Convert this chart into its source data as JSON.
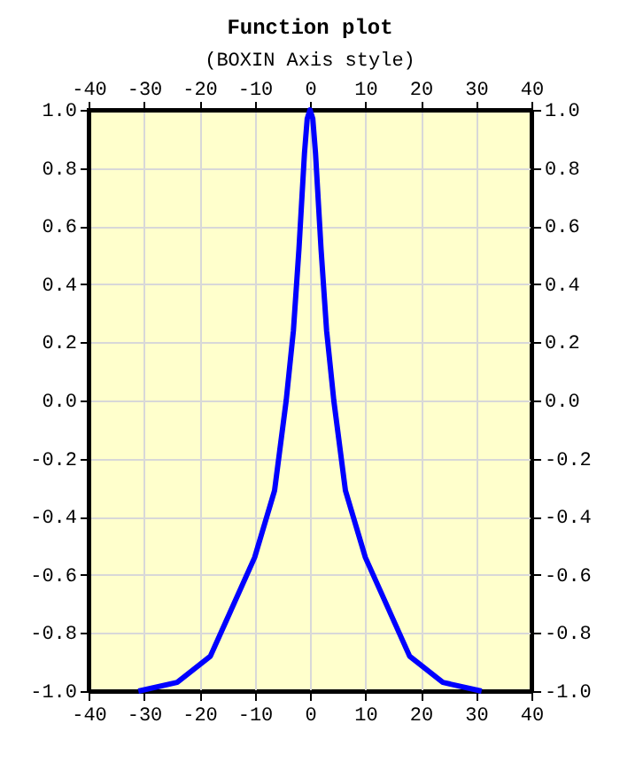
{
  "chart_data": {
    "type": "line",
    "title": "Function plot",
    "subtitle": "(BOXIN Axis style)",
    "x": [
      -31,
      -24,
      -18,
      -10,
      -6.4,
      -4.3,
      -3,
      -2,
      -1,
      -0.5,
      0,
      0.5,
      1,
      2,
      3,
      4.3,
      6.4,
      10,
      18,
      24,
      31
    ],
    "series": [
      {
        "color": "#0000ff",
        "values": [
          -1.0,
          -0.97,
          -0.88,
          -0.54,
          -0.31,
          0.0,
          0.24,
          0.52,
          0.85,
          0.97,
          1.0,
          0.97,
          0.85,
          0.52,
          0.24,
          0.0,
          -0.31,
          -0.54,
          -0.88,
          -0.97,
          -1.0
        ]
      }
    ],
    "xlim": [
      -40,
      40
    ],
    "xticks": [
      -40,
      -30,
      -20,
      -10,
      0,
      10,
      20,
      30,
      40
    ],
    "x2lim": [
      -40,
      40
    ],
    "x2ticks": [
      -40,
      -30,
      -20,
      -10,
      0,
      10,
      20,
      30,
      40
    ],
    "ylim": [
      -1,
      1
    ],
    "yticks": [
      {
        "value": -1,
        "label": "-1.0"
      },
      -0.8,
      -0.6,
      -0.4,
      -0.2,
      {
        "value": 0,
        "label": "0.0"
      },
      0.2,
      0.4,
      0.6,
      0.8,
      {
        "value": 1,
        "label": "1.0"
      }
    ],
    "y2lim": [
      -1,
      1
    ],
    "y2ticks": [
      {
        "value": -1,
        "label": "-1.0"
      },
      -0.8,
      -0.6,
      -0.4,
      -0.2,
      {
        "value": 0,
        "label": "0.0"
      },
      0.2,
      0.4,
      0.6,
      0.8,
      {
        "value": 1,
        "label": "1.0"
      }
    ],
    "grid": true,
    "marker": "none"
  }
}
